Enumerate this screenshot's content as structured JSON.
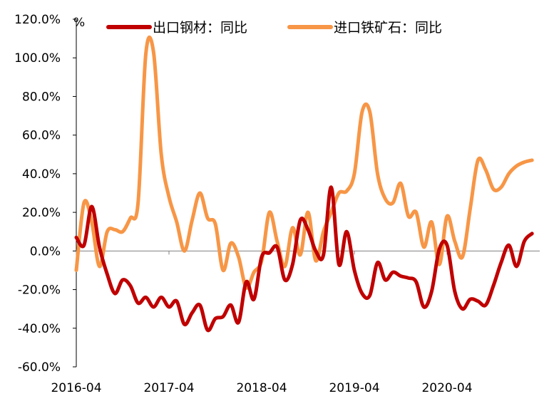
{
  "colors": {
    "steel_export": "#C00000",
    "iron_ore_import": "#F79646",
    "axis": "#000000",
    "zero_line": "#808080"
  },
  "chart_data": {
    "type": "line",
    "title": "",
    "ylabel": "%",
    "xlabel": "",
    "ylim": [
      -60,
      120
    ],
    "yticks": [
      -60,
      -40,
      -20,
      0,
      20,
      40,
      60,
      80,
      100,
      120
    ],
    "ytick_labels": [
      "-60.0%",
      "-40.0%",
      "-20.0%",
      "0.0%",
      "20.0%",
      "40.0%",
      "60.0%",
      "80.0%",
      "100.0%",
      "120.0%"
    ],
    "x_range": [
      "2016-04",
      "2021-04"
    ],
    "xtick_labels": [
      "2016-04",
      "2017-04",
      "2018-04",
      "2019-04",
      "2020-04"
    ],
    "xticks": [
      "2016-04",
      "2017-04",
      "2018-04",
      "2019-04",
      "2020-04"
    ],
    "grid": false,
    "legend_position": "top",
    "series": [
      {
        "name": "出口钢材：同比",
        "color_key": "steel_export",
        "points": [
          [
            "2016-04",
            7
          ],
          [
            "2016-05",
            3
          ],
          [
            "2016-06",
            23
          ],
          [
            "2016-07",
            2
          ],
          [
            "2016-08",
            -12
          ],
          [
            "2016-09",
            -22
          ],
          [
            "2016-10",
            -15
          ],
          [
            "2016-11",
            -18
          ],
          [
            "2016-12",
            -27
          ],
          [
            "2017-01",
            -24
          ],
          [
            "2017-02",
            -29
          ],
          [
            "2017-03",
            -24
          ],
          [
            "2017-04",
            -29
          ],
          [
            "2017-05",
            -26
          ],
          [
            "2017-06",
            -38
          ],
          [
            "2017-07",
            -32
          ],
          [
            "2017-08",
            -28
          ],
          [
            "2017-09",
            -41
          ],
          [
            "2017-10",
            -35
          ],
          [
            "2017-11",
            -34
          ],
          [
            "2017-12",
            -28
          ],
          [
            "2018-01",
            -37
          ],
          [
            "2018-02",
            -16
          ],
          [
            "2018-03",
            -25
          ],
          [
            "2018-04",
            -3
          ],
          [
            "2018-05",
            -1
          ],
          [
            "2018-06",
            2
          ],
          [
            "2018-07",
            -15
          ],
          [
            "2018-08",
            -7
          ],
          [
            "2018-09",
            16
          ],
          [
            "2018-10",
            11
          ],
          [
            "2018-11",
            0
          ],
          [
            "2018-12",
            -2
          ],
          [
            "2019-01",
            33
          ],
          [
            "2019-02",
            -7
          ],
          [
            "2019-03",
            10
          ],
          [
            "2019-04",
            -10
          ],
          [
            "2019-05",
            -22
          ],
          [
            "2019-06",
            -23
          ],
          [
            "2019-07",
            -6
          ],
          [
            "2019-08",
            -15
          ],
          [
            "2019-09",
            -11
          ],
          [
            "2019-10",
            -13
          ],
          [
            "2019-11",
            -14
          ],
          [
            "2019-12",
            -16
          ],
          [
            "2020-01",
            -29
          ],
          [
            "2020-02",
            -21
          ],
          [
            "2020-03",
            1
          ],
          [
            "2020-04",
            3
          ],
          [
            "2020-05",
            -21
          ],
          [
            "2020-06",
            -30
          ],
          [
            "2020-07",
            -25
          ],
          [
            "2020-08",
            -26
          ],
          [
            "2020-09",
            -28
          ],
          [
            "2020-10",
            -18
          ],
          [
            "2020-11",
            -6
          ],
          [
            "2020-12",
            3
          ],
          [
            "2021-01",
            -8
          ],
          [
            "2021-02",
            5
          ],
          [
            "2021-03",
            9
          ]
        ]
      },
      {
        "name": "进口铁矿石：同比",
        "color_key": "iron_ore_import",
        "points": [
          [
            "2016-04",
            -10
          ],
          [
            "2016-05",
            25
          ],
          [
            "2016-06",
            15
          ],
          [
            "2016-07",
            -8
          ],
          [
            "2016-08",
            10
          ],
          [
            "2016-09",
            11
          ],
          [
            "2016-10",
            10
          ],
          [
            "2016-11",
            17
          ],
          [
            "2016-12",
            25
          ],
          [
            "2017-01",
            102
          ],
          [
            "2017-02",
            103
          ],
          [
            "2017-03",
            50
          ],
          [
            "2017-04",
            28
          ],
          [
            "2017-05",
            15
          ],
          [
            "2017-06",
            0
          ],
          [
            "2017-07",
            16
          ],
          [
            "2017-08",
            30
          ],
          [
            "2017-09",
            17
          ],
          [
            "2017-10",
            14
          ],
          [
            "2017-11",
            -10
          ],
          [
            "2017-12",
            4
          ],
          [
            "2018-01",
            -3
          ],
          [
            "2018-02",
            -19
          ],
          [
            "2018-03",
            -11
          ],
          [
            "2018-04",
            -5
          ],
          [
            "2018-05",
            20
          ],
          [
            "2018-06",
            5
          ],
          [
            "2018-07",
            -8
          ],
          [
            "2018-08",
            12
          ],
          [
            "2018-09",
            -2
          ],
          [
            "2018-10",
            20
          ],
          [
            "2018-11",
            -5
          ],
          [
            "2018-12",
            10
          ],
          [
            "2019-01",
            20
          ],
          [
            "2019-02",
            30
          ],
          [
            "2019-03",
            31
          ],
          [
            "2019-04",
            40
          ],
          [
            "2019-05",
            72
          ],
          [
            "2019-06",
            72
          ],
          [
            "2019-07",
            40
          ],
          [
            "2019-08",
            27
          ],
          [
            "2019-09",
            25
          ],
          [
            "2019-10",
            35
          ],
          [
            "2019-11",
            18
          ],
          [
            "2019-12",
            20
          ],
          [
            "2020-01",
            2
          ],
          [
            "2020-02",
            15
          ],
          [
            "2020-03",
            -7
          ],
          [
            "2020-04",
            18
          ],
          [
            "2020-05",
            5
          ],
          [
            "2020-06",
            -3
          ],
          [
            "2020-07",
            22
          ],
          [
            "2020-08",
            47
          ],
          [
            "2020-09",
            42
          ],
          [
            "2020-10",
            32
          ],
          [
            "2020-11",
            33
          ],
          [
            "2020-12",
            40
          ],
          [
            "2021-01",
            44
          ],
          [
            "2021-02",
            46
          ],
          [
            "2021-03",
            47
          ]
        ]
      }
    ]
  }
}
